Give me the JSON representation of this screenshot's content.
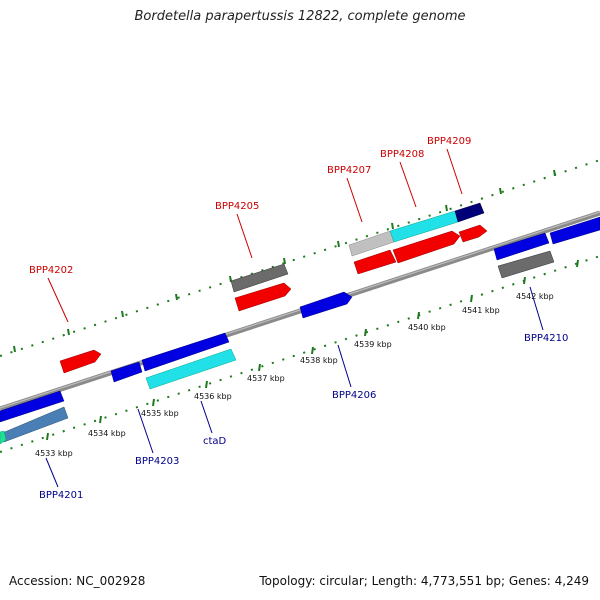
{
  "title": "Bordetella parapertussis 12822, complete genome",
  "footer": {
    "accession": "Accession: NC_002928",
    "topology": "Topology: circular; Length: 4,773,551 bp; Genes: 4,249"
  },
  "colors": {
    "backbone": "#8a8a8a",
    "tick": "#1f7a1f",
    "fwd_label": "#cc0000",
    "rev_label": "#00008b"
  },
  "scale_labels": [
    {
      "name": "tick-4533kbp",
      "text": "4533 kbp"
    },
    {
      "name": "tick-4534kbp",
      "text": "4534 kbp"
    },
    {
      "name": "tick-4535kbp",
      "text": "4535 kbp"
    },
    {
      "name": "tick-4536kbp",
      "text": "4536 kbp"
    },
    {
      "name": "tick-4537kbp",
      "text": "4537 kbp"
    },
    {
      "name": "tick-4538kbp",
      "text": "4538 kbp"
    },
    {
      "name": "tick-4539kbp",
      "text": "4539 kbp"
    },
    {
      "name": "tick-4540kbp",
      "text": "4540 kbp"
    },
    {
      "name": "tick-4541kbp",
      "text": "4541 kbp"
    },
    {
      "name": "tick-4542kbp",
      "text": "4542 kbp"
    }
  ],
  "gene_labels": [
    {
      "name": "label-bpp4202",
      "text": "BPP4202",
      "strand": "forward"
    },
    {
      "name": "label-bpp4205",
      "text": "BPP4205",
      "strand": "forward"
    },
    {
      "name": "label-bpp4207",
      "text": "BPP4207",
      "strand": "forward"
    },
    {
      "name": "label-bpp4208",
      "text": "BPP4208",
      "strand": "forward"
    },
    {
      "name": "label-bpp4209",
      "text": "BPP4209",
      "strand": "forward"
    },
    {
      "name": "label-bpp4201",
      "text": "BPP4201",
      "strand": "reverse"
    },
    {
      "name": "label-bpp4203",
      "text": "BPP4203",
      "strand": "reverse"
    },
    {
      "name": "label-ctad",
      "text": "ctaD",
      "strand": "reverse"
    },
    {
      "name": "label-bpp4206",
      "text": "BPP4206",
      "strand": "reverse"
    },
    {
      "name": "label-bpp4210",
      "text": "BPP4210",
      "strand": "reverse"
    }
  ]
}
